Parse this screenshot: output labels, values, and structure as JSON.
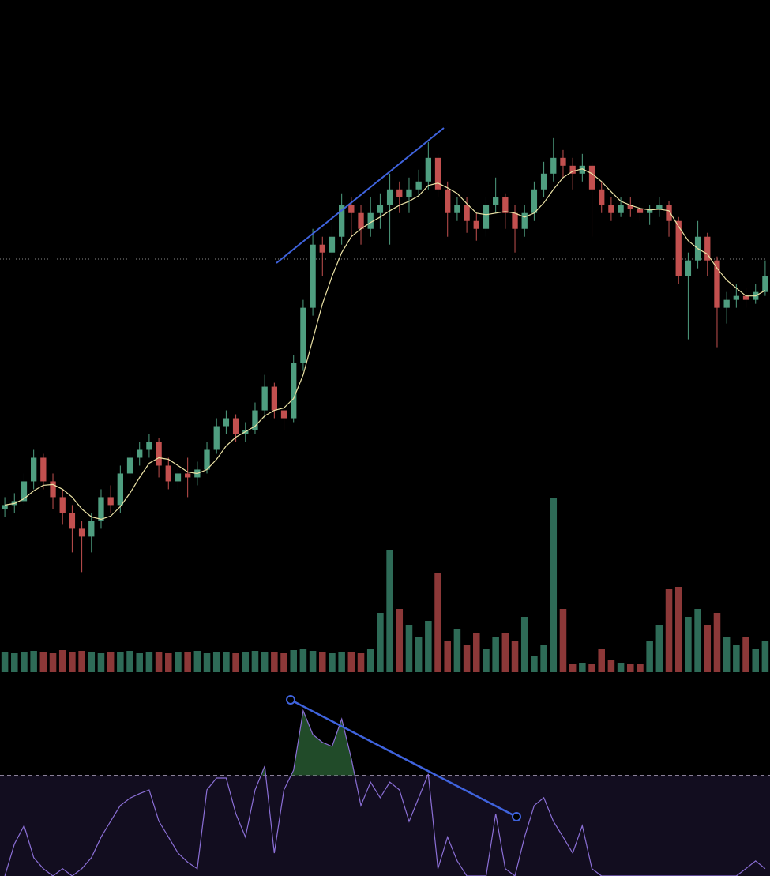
{
  "chart_data": {
    "type": "candlestick",
    "ylim": [
      0,
      111
    ],
    "up_color": "#4f9e80",
    "down_color": "#c2504f",
    "open": [
      46.5,
      47,
      47.5,
      50,
      53,
      50,
      48,
      46,
      44,
      43,
      45,
      48,
      47,
      51,
      53,
      54,
      55,
      52,
      50,
      51,
      50.5,
      51.5,
      54,
      57,
      58,
      56,
      56.5,
      59,
      62,
      59,
      58,
      65,
      72,
      80,
      79,
      81,
      85,
      84,
      82,
      84,
      85,
      87,
      86,
      87,
      88,
      91,
      87,
      84,
      85,
      83,
      82,
      85,
      86,
      84,
      82,
      84,
      87,
      89,
      91,
      90,
      89,
      90,
      87,
      85,
      84,
      85,
      84.5,
      84,
      84.5,
      85,
      83,
      76,
      78,
      81,
      78,
      72,
      73,
      73.5,
      73,
      74
    ],
    "high": [
      48,
      48.5,
      51,
      54,
      53.5,
      51,
      49,
      47,
      45,
      46,
      49,
      49.5,
      52,
      54,
      55,
      56,
      55.5,
      53,
      52,
      53,
      52.5,
      55,
      58,
      59,
      58.5,
      57.5,
      60,
      63.5,
      62.5,
      60,
      66,
      73,
      82,
      81,
      82.5,
      86.5,
      86,
      85,
      86,
      86.5,
      89,
      88,
      88.5,
      89.5,
      93,
      91.5,
      88,
      86,
      86,
      84,
      86,
      88.5,
      86.5,
      85,
      85,
      88,
      90.5,
      93.5,
      92,
      91,
      91.5,
      90.5,
      88,
      86,
      86,
      86,
      85.5,
      85,
      86,
      85.5,
      83.5,
      79,
      83,
      81.5,
      78.5,
      74,
      75,
      74.5,
      75,
      78
    ],
    "low": [
      45.5,
      46,
      47,
      49,
      49,
      46.5,
      44.5,
      41,
      38.5,
      41,
      44,
      46,
      46,
      50,
      52,
      53,
      50.5,
      49,
      49,
      48,
      49.5,
      51,
      53.5,
      56,
      55,
      55,
      56,
      58,
      58,
      56.5,
      57.5,
      64,
      71,
      76,
      78,
      80,
      81,
      80,
      81,
      82,
      80,
      84,
      84,
      86,
      87,
      86,
      81,
      83,
      81.5,
      80.5,
      81,
      84,
      82,
      79,
      81,
      83,
      86,
      88,
      88.5,
      87,
      88,
      81,
      84,
      83,
      83.5,
      83.5,
      83,
      82.5,
      83.5,
      81,
      75,
      68,
      77,
      76,
      67,
      70,
      72,
      72,
      72.5,
      73.5
    ],
    "close": [
      47,
      47.5,
      50,
      53,
      50,
      48,
      46,
      44,
      43,
      45,
      48,
      47,
      51,
      53,
      54,
      55,
      52,
      50,
      51,
      50.5,
      51.5,
      54,
      57,
      58,
      56,
      56.5,
      59,
      62,
      59,
      58,
      65,
      72,
      80,
      79,
      81,
      85,
      84,
      82,
      84,
      85,
      87,
      86,
      87,
      88,
      91,
      87,
      84,
      85,
      83,
      82,
      85,
      86,
      84,
      82,
      84,
      87,
      89,
      91,
      90,
      89,
      90,
      87,
      85,
      84,
      85,
      84.5,
      84,
      84.5,
      85,
      83,
      76,
      78,
      81,
      78,
      72,
      73,
      73.5,
      73,
      74,
      76
    ],
    "ma": {
      "color": "#ece3a6",
      "values": [
        47,
        47.2,
        47.8,
        48.8,
        49.5,
        49.6,
        49,
        48,
        46.5,
        45.5,
        45.2,
        45.6,
        46.8,
        48.5,
        50.5,
        52.3,
        53,
        52.8,
        52,
        51.2,
        51,
        51.5,
        52.8,
        54.5,
        55.6,
        56.3,
        57,
        58.3,
        59,
        59.3,
        60.5,
        63.5,
        68,
        72.5,
        76,
        79,
        81,
        82,
        82.8,
        83.5,
        84.3,
        85,
        85.5,
        86.2,
        87.5,
        87.8,
        87.2,
        86.5,
        85.2,
        84,
        83.8,
        84,
        84.2,
        84,
        83.5,
        84,
        85.3,
        87,
        88.5,
        89.3,
        89.6,
        89,
        88,
        86.7,
        85.5,
        85,
        84.6,
        84.4,
        84.5,
        84.3,
        82.3,
        80.5,
        79.5,
        78.8,
        77,
        75.5,
        74.5,
        73.5,
        73.5,
        74.2
      ]
    },
    "volume": {
      "ylim": [
        0,
        250
      ],
      "up_color": "#2e6b57",
      "down_color": "#8c3838",
      "values": [
        25,
        24,
        26,
        27,
        25,
        24,
        28,
        26,
        27,
        25,
        24,
        26,
        25,
        27,
        24,
        26,
        25,
        24,
        26,
        25,
        27,
        24,
        25,
        26,
        24,
        25,
        27,
        26,
        25,
        24,
        28,
        30,
        27,
        25,
        24,
        26,
        25,
        24,
        30,
        75,
        155,
        80,
        60,
        45,
        65,
        125,
        40,
        55,
        35,
        50,
        30,
        45,
        50,
        40,
        70,
        20,
        35,
        220,
        80,
        10,
        12,
        10,
        30,
        15,
        12,
        10,
        10,
        40,
        60,
        105,
        108,
        70,
        80,
        60,
        75,
        45,
        35,
        45,
        30,
        40
      ]
    },
    "rsi": {
      "ylim": [
        48,
        92
      ],
      "level": 70,
      "color": "#8b6fd6",
      "fill_color": "#120d1f",
      "hot_color": "#2f6b3a",
      "values": [
        48,
        55,
        59,
        52,
        49.6,
        48,
        49.6,
        48,
        49.6,
        52,
        56.5,
        60,
        63.4,
        65,
        66,
        66.8,
        60,
        56.5,
        53,
        51,
        49.6,
        66.8,
        69.4,
        69.4,
        61.6,
        56.5,
        66.8,
        72,
        53,
        66.8,
        71.1,
        84.1,
        78.9,
        77.2,
        76.3,
        82.3,
        73.7,
        63.4,
        68.5,
        65.1,
        68.5,
        66.8,
        59.9,
        65.1,
        70.3,
        49.6,
        56.5,
        51.3,
        48,
        48,
        48,
        61.6,
        49.6,
        48,
        56.5,
        63.4,
        65.1,
        59.9,
        56.5,
        53,
        59,
        49.6,
        48,
        48,
        48,
        48,
        48,
        48,
        48,
        48,
        48,
        48,
        48,
        48,
        48,
        48,
        48,
        49.6,
        51.3,
        49.6
      ]
    }
  }
}
